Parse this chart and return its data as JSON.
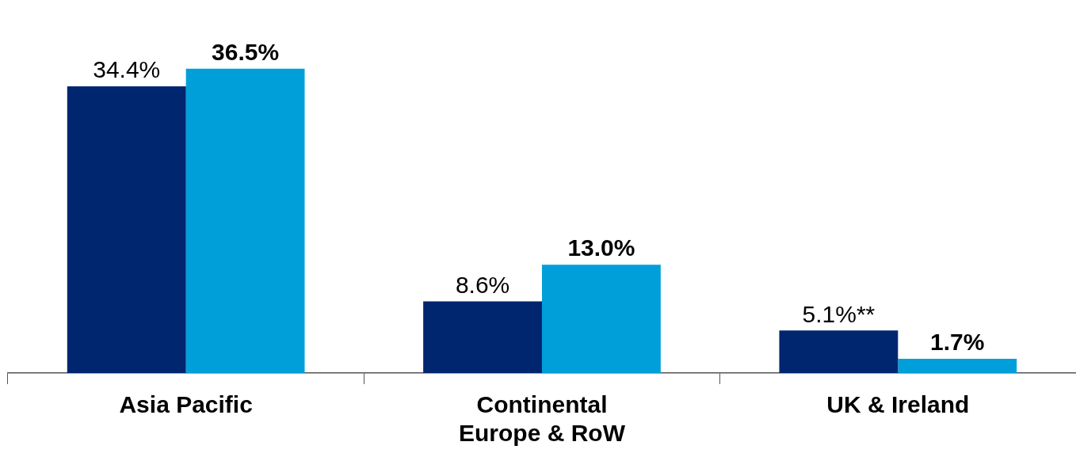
{
  "chart_data": {
    "type": "bar",
    "categories": [
      "Asia Pacific",
      "Continental Europe & RoW",
      "UK & Ireland"
    ],
    "series": [
      {
        "color": "#00266f",
        "values": [
          34.4,
          8.6,
          5.1
        ],
        "value_labels": [
          "34.4%",
          "8.6%",
          "5.1%**"
        ]
      },
      {
        "color": "#009fda",
        "values": [
          36.5,
          13.0,
          1.7
        ],
        "value_labels": [
          "36.5%",
          "13.0%",
          "1.7%"
        ]
      }
    ],
    "legend": false
  }
}
